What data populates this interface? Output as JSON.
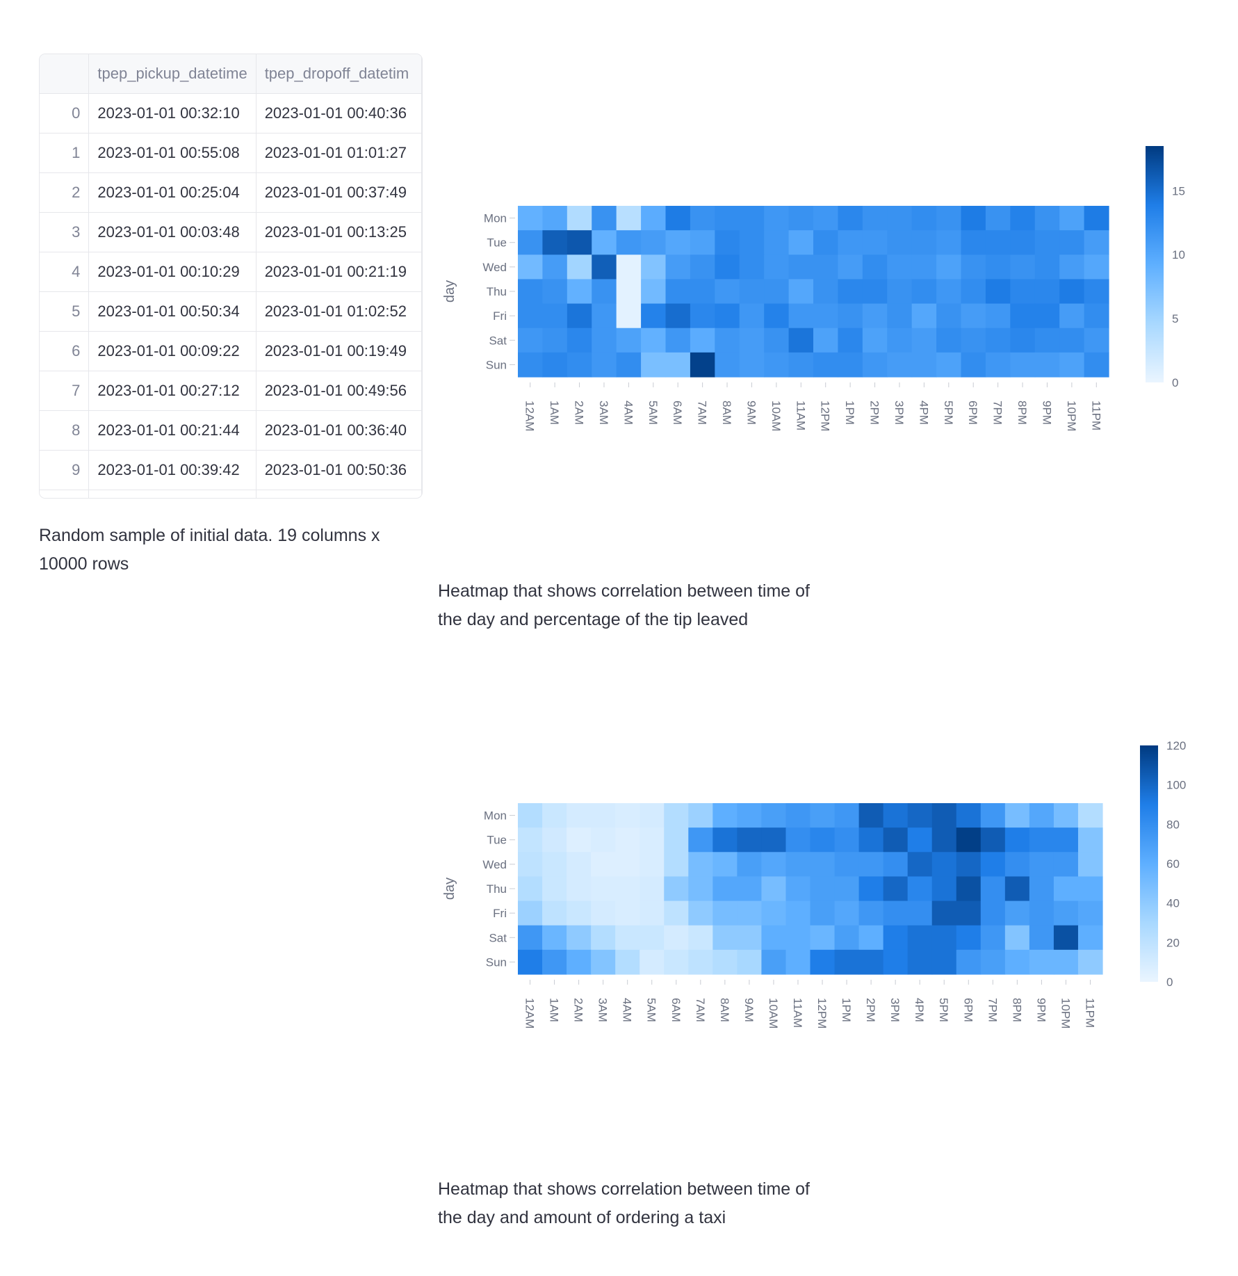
{
  "table": {
    "columns": [
      "",
      "tpep_pickup_datetime",
      "tpep_dropoff_datetim"
    ],
    "rows": [
      [
        "0",
        "2023-01-01 00:32:10",
        "2023-01-01 00:40:36"
      ],
      [
        "1",
        "2023-01-01 00:55:08",
        "2023-01-01 01:01:27"
      ],
      [
        "2",
        "2023-01-01 00:25:04",
        "2023-01-01 00:37:49"
      ],
      [
        "3",
        "2023-01-01 00:03:48",
        "2023-01-01 00:13:25"
      ],
      [
        "4",
        "2023-01-01 00:10:29",
        "2023-01-01 00:21:19"
      ],
      [
        "5",
        "2023-01-01 00:50:34",
        "2023-01-01 01:02:52"
      ],
      [
        "6",
        "2023-01-01 00:09:22",
        "2023-01-01 00:19:49"
      ],
      [
        "7",
        "2023-01-01 00:27:12",
        "2023-01-01 00:49:56"
      ],
      [
        "8",
        "2023-01-01 00:21:44",
        "2023-01-01 00:36:40"
      ],
      [
        "9",
        "2023-01-01 00:39:42",
        "2023-01-01 00:50:36"
      ]
    ]
  },
  "table_caption": "Random sample of initial data. 19 columns x 10000 rows",
  "heatmap1_caption": "Heatmap that shows correlation between time of the day and percentage of the tip leaved",
  "heatmap2_caption": "Heatmap that shows correlation between time of the day and amount of ordering a taxi",
  "colors": {
    "low": "#eaf5ff",
    "mid1": "#a8d8ff",
    "mid2": "#5eafff",
    "mid3": "#1f7ee8",
    "high": "#003a80"
  },
  "chart_data": [
    {
      "type": "heatmap",
      "ylabel": "day",
      "xlabel": "",
      "x": [
        "12AM",
        "1AM",
        "2AM",
        "3AM",
        "4AM",
        "5AM",
        "6AM",
        "7AM",
        "8AM",
        "9AM",
        "10AM",
        "11AM",
        "12PM",
        "1PM",
        "2PM",
        "3PM",
        "4PM",
        "5PM",
        "6PM",
        "7PM",
        "8PM",
        "9PM",
        "10PM",
        "11PM"
      ],
      "y": [
        "Mon",
        "Tue",
        "Wed",
        "Thu",
        "Fri",
        "Sat",
        "Sun"
      ],
      "zmin": 0,
      "zmax": 18.5,
      "colorbar_ticks": [
        0,
        5,
        10,
        15
      ],
      "z": [
        [
          9,
          10,
          4,
          12,
          3.5,
          9.5,
          14,
          12,
          12.5,
          12.5,
          11.5,
          12,
          11.5,
          13,
          12,
          12,
          12.5,
          12,
          14,
          12,
          13.5,
          12,
          10.5,
          14
        ],
        [
          12,
          16,
          16.5,
          9,
          11.5,
          11,
          10,
          10.5,
          13,
          12.5,
          11.5,
          10,
          12.5,
          11.5,
          11.5,
          12,
          12,
          11.5,
          13,
          13,
          13,
          12.5,
          12.5,
          11
        ],
        [
          8,
          11,
          5,
          16,
          0.5,
          7,
          11,
          12,
          13.5,
          12.5,
          11.5,
          12,
          12,
          11,
          12.5,
          11.5,
          11.5,
          10.5,
          12,
          12.5,
          12,
          12.5,
          11,
          10
        ],
        [
          12.5,
          12,
          9,
          12,
          0.5,
          8,
          12.5,
          12.5,
          11.5,
          12,
          12,
          10,
          12,
          13,
          13,
          12,
          12.5,
          11.5,
          12.5,
          14,
          13,
          13,
          14,
          13
        ],
        [
          12.5,
          12.5,
          14.5,
          11.5,
          0.5,
          13.5,
          15,
          13,
          13.5,
          11.5,
          13.5,
          11.5,
          11.5,
          12,
          11,
          12,
          10,
          12,
          11,
          11.5,
          13.5,
          13.5,
          11,
          12.5
        ],
        [
          11.5,
          12,
          13,
          11.5,
          10.5,
          9,
          11.5,
          9.5,
          11.5,
          11,
          12,
          14.5,
          10.5,
          13,
          10.5,
          11.5,
          11,
          12.5,
          12,
          12.5,
          13,
          12.5,
          12.5,
          11.5
        ],
        [
          12.5,
          13,
          12.5,
          11.5,
          12.5,
          7.5,
          7.5,
          18,
          11.5,
          11,
          11.5,
          12,
          12.5,
          12.5,
          11.5,
          11,
          11,
          10.5,
          12.5,
          11.5,
          11,
          11,
          10.5,
          12.5
        ]
      ]
    },
    {
      "type": "heatmap",
      "ylabel": "day",
      "xlabel": "",
      "x": [
        "12AM",
        "1AM",
        "2AM",
        "3AM",
        "4AM",
        "5AM",
        "6AM",
        "7AM",
        "8AM",
        "9AM",
        "10AM",
        "11AM",
        "12PM",
        "1PM",
        "2PM",
        "3PM",
        "4PM",
        "5PM",
        "6PM",
        "7PM",
        "8PM",
        "9PM",
        "10PM",
        "11PM"
      ],
      "y": [
        "Mon",
        "Tue",
        "Wed",
        "Thu",
        "Fri",
        "Sat",
        "Sun"
      ],
      "zmin": 0,
      "zmax": 120,
      "colorbar_ticks": [
        0,
        20,
        40,
        60,
        80,
        100,
        120
      ],
      "z": [
        [
          25,
          15,
          10,
          10,
          8,
          10,
          25,
          35,
          60,
          65,
          70,
          75,
          70,
          75,
          105,
          95,
          100,
          105,
          95,
          75,
          50,
          65,
          50,
          25
        ],
        [
          18,
          12,
          6,
          8,
          6,
          8,
          25,
          75,
          95,
          100,
          100,
          80,
          85,
          80,
          95,
          105,
          90,
          105,
          118,
          105,
          90,
          85,
          85,
          45
        ],
        [
          20,
          15,
          10,
          6,
          6,
          8,
          25,
          50,
          55,
          70,
          65,
          70,
          70,
          75,
          75,
          80,
          100,
          95,
          100,
          90,
          80,
          75,
          75,
          45
        ],
        [
          25,
          15,
          10,
          8,
          8,
          10,
          40,
          50,
          65,
          65,
          50,
          65,
          70,
          70,
          90,
          100,
          85,
          95,
          110,
          80,
          105,
          75,
          60,
          60
        ],
        [
          35,
          20,
          15,
          10,
          8,
          10,
          20,
          40,
          50,
          50,
          55,
          60,
          70,
          65,
          75,
          80,
          80,
          105,
          105,
          80,
          70,
          75,
          70,
          65
        ],
        [
          75,
          55,
          40,
          25,
          15,
          15,
          10,
          15,
          40,
          40,
          60,
          60,
          55,
          70,
          60,
          90,
          95,
          95,
          90,
          75,
          45,
          75,
          110,
          60
        ],
        [
          90,
          75,
          60,
          45,
          25,
          10,
          15,
          20,
          25,
          30,
          70,
          60,
          90,
          95,
          95,
          90,
          95,
          95,
          75,
          70,
          60,
          55,
          55,
          40
        ]
      ]
    }
  ]
}
